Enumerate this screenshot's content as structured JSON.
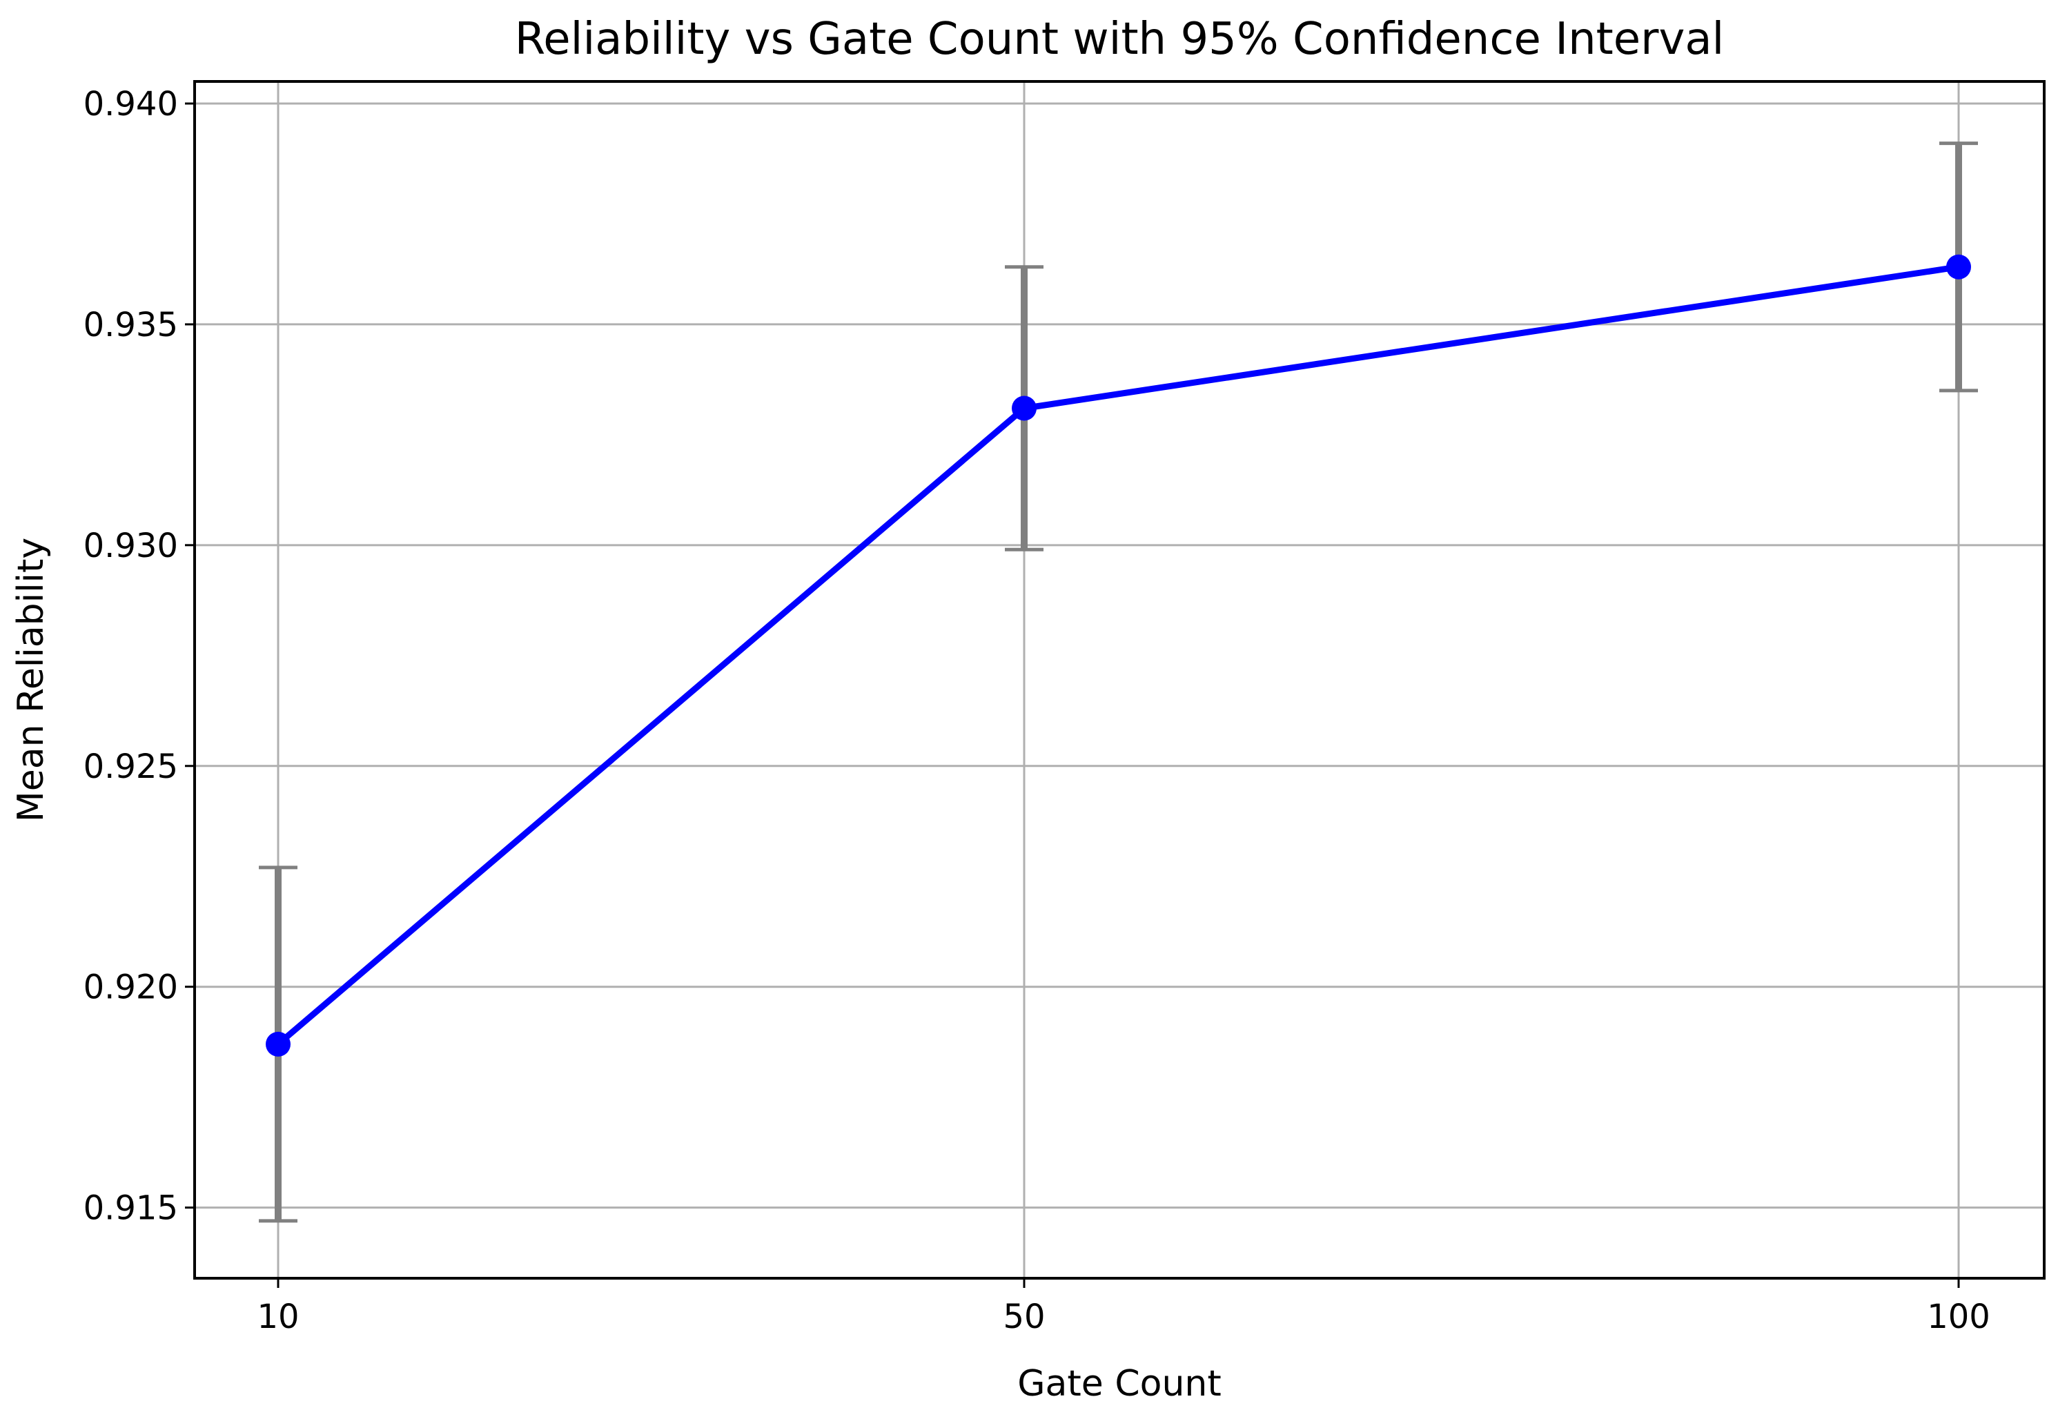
{
  "chart_data": {
    "type": "line",
    "title": "Reliability vs Gate Count with 95% Confidence Interval",
    "xlabel": "Gate Count",
    "ylabel": "Mean Reliability",
    "x_ticks": [
      "10",
      "50",
      "100"
    ],
    "y_ticks": [
      "0.915",
      "0.920",
      "0.925",
      "0.930",
      "0.935",
      "0.940"
    ],
    "y_tick_values": [
      0.915,
      0.92,
      0.925,
      0.93,
      0.935,
      0.94
    ],
    "ylim": [
      0.9134,
      0.9405
    ],
    "grid": true,
    "series": [
      {
        "color": "#0000ff",
        "errorbar_color": "#808080",
        "points": [
          {
            "category": "10",
            "y": 0.9187,
            "ci_low": 0.9147,
            "ci_high": 0.9227
          },
          {
            "category": "50",
            "y": 0.9331,
            "ci_low": 0.9299,
            "ci_high": 0.9363
          },
          {
            "category": "100",
            "y": 0.9363,
            "ci_low": 0.9335,
            "ci_high": 0.9391
          }
        ]
      }
    ]
  }
}
